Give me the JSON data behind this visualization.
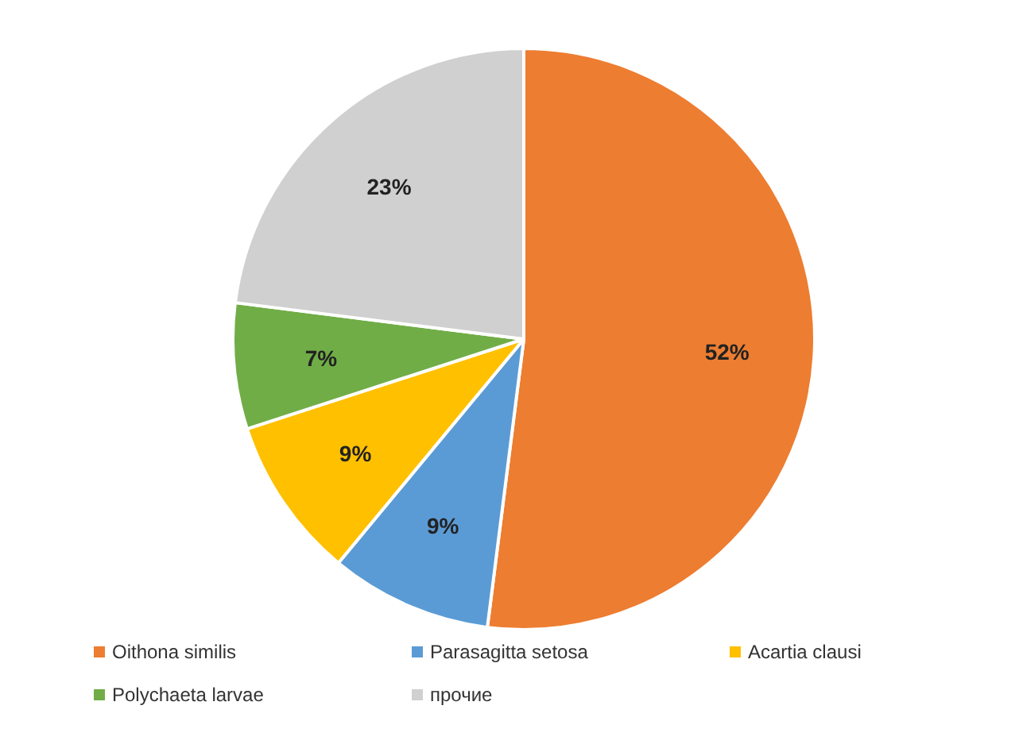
{
  "chart_data": {
    "type": "pie",
    "categories": [
      "Oithona similis",
      "Parasagitta setosa",
      "Acartia clausi",
      "Polychaeta larvae",
      "прочие"
    ],
    "values": [
      52,
      9,
      9,
      7,
      23
    ],
    "value_labels": [
      "52%",
      "9%",
      "9%",
      "7%",
      "23%"
    ],
    "colors": [
      "#ed7d31",
      "#5b9bd5",
      "#ffc000",
      "#70ad47",
      "#d0d0d0"
    ],
    "legend": "bottom"
  }
}
